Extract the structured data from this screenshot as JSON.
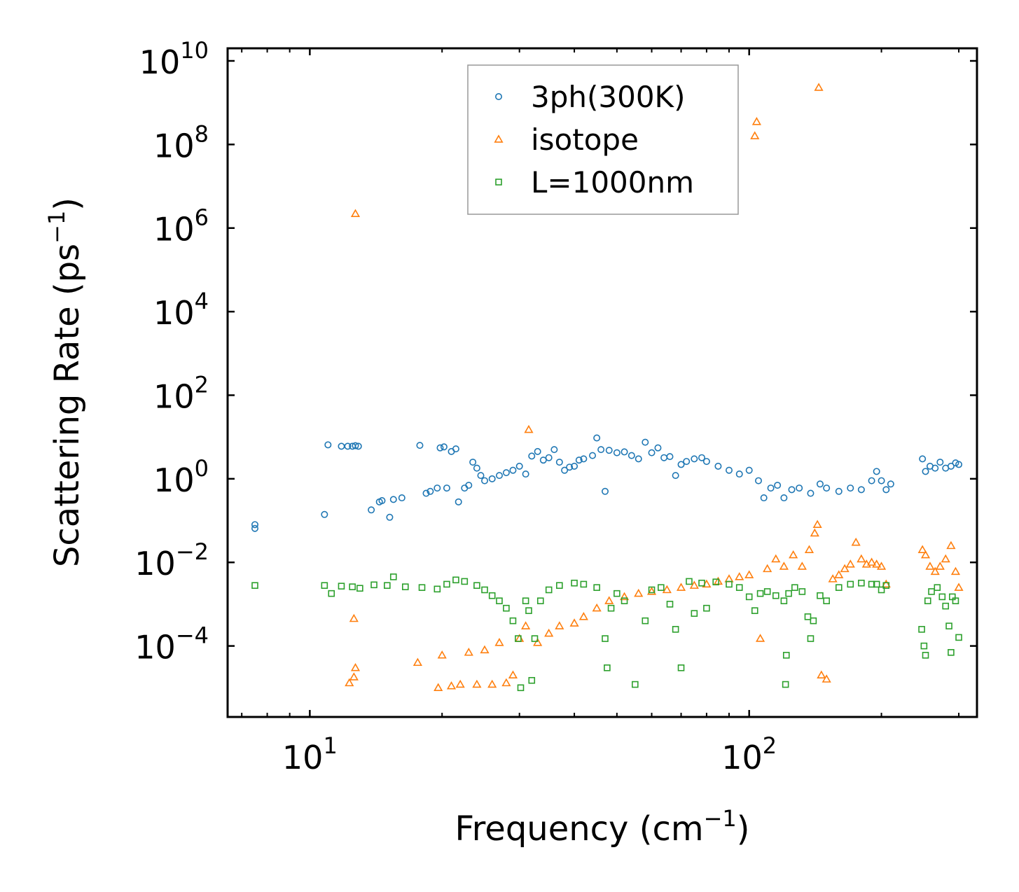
{
  "chart_data": {
    "type": "scatter",
    "title": "",
    "xlabel": "Frequency (cm⁻¹)",
    "xlabel_base": "Frequency (cm",
    "xlabel_sup": "−1",
    "xlabel_close": ")",
    "ylabel": "Scattering Rate (ps⁻¹)",
    "ylabel_base": "Scattering Rate (ps",
    "ylabel_sup": "−1",
    "ylabel_close": ")",
    "xscale": "log",
    "yscale": "log",
    "xlim": [
      6.5,
      330
    ],
    "ylim": [
      2e-06,
      20000000000.0
    ],
    "grid": false,
    "legend_position": "top-center",
    "x_ticks": [
      {
        "base": "10",
        "exp": "1",
        "value": 10
      },
      {
        "base": "10",
        "exp": "2",
        "value": 100
      }
    ],
    "y_ticks": [
      {
        "base": "10",
        "exp": "10",
        "value": 10000000000.0
      },
      {
        "base": "10",
        "exp": "8",
        "value": 100000000.0
      },
      {
        "base": "10",
        "exp": "6",
        "value": 1000000.0
      },
      {
        "base": "10",
        "exp": "4",
        "value": 10000.0
      },
      {
        "base": "10",
        "exp": "2",
        "value": 100
      },
      {
        "base": "10",
        "exp": "0",
        "value": 1
      },
      {
        "base": "10",
        "exp": "−2",
        "value": 0.01
      },
      {
        "base": "10",
        "exp": "−4",
        "value": 0.0001
      }
    ],
    "series": [
      {
        "name": "3ph(300K)",
        "marker": "circle",
        "color": "#1f77b4",
        "points": [
          [
            7.5,
            0.08
          ],
          [
            7.5,
            0.065
          ],
          [
            10.8,
            0.14
          ],
          [
            11.0,
            6.5
          ],
          [
            11.8,
            6.0
          ],
          [
            12.2,
            6.0
          ],
          [
            12.5,
            6.0
          ],
          [
            12.7,
            6.2
          ],
          [
            12.9,
            6.0
          ],
          [
            13.8,
            0.18
          ],
          [
            14.4,
            0.28
          ],
          [
            14.6,
            0.3
          ],
          [
            15.2,
            0.12
          ],
          [
            15.5,
            0.32
          ],
          [
            16.2,
            0.35
          ],
          [
            17.8,
            6.3
          ],
          [
            18.4,
            0.45
          ],
          [
            18.8,
            0.5
          ],
          [
            19.5,
            0.6
          ],
          [
            19.8,
            5.5
          ],
          [
            20.2,
            5.8
          ],
          [
            20.5,
            0.6
          ],
          [
            21.0,
            4.5
          ],
          [
            21.5,
            5.2
          ],
          [
            21.8,
            0.28
          ],
          [
            22.5,
            0.6
          ],
          [
            23.0,
            0.7
          ],
          [
            23.5,
            2.5
          ],
          [
            24.0,
            1.8
          ],
          [
            24.5,
            1.2
          ],
          [
            25.0,
            0.9
          ],
          [
            26.0,
            1.0
          ],
          [
            27.0,
            1.2
          ],
          [
            28.0,
            1.4
          ],
          [
            29.0,
            1.6
          ],
          [
            30.0,
            2.0
          ],
          [
            31.0,
            1.3
          ],
          [
            32.0,
            3.5
          ],
          [
            33.0,
            4.5
          ],
          [
            34.0,
            2.8
          ],
          [
            35.0,
            3.2
          ],
          [
            36.0,
            5.0
          ],
          [
            37.0,
            2.5
          ],
          [
            38.0,
            1.6
          ],
          [
            39.0,
            1.9
          ],
          [
            40.0,
            2.0
          ],
          [
            41.0,
            2.8
          ],
          [
            42.0,
            3.0
          ],
          [
            44.0,
            3.6
          ],
          [
            45.0,
            9.5
          ],
          [
            46.0,
            5.0
          ],
          [
            47.0,
            0.5
          ],
          [
            48.0,
            4.8
          ],
          [
            50.0,
            4.2
          ],
          [
            52.0,
            4.4
          ],
          [
            54.0,
            3.6
          ],
          [
            56.0,
            3.0
          ],
          [
            58.0,
            7.5
          ],
          [
            60.0,
            4.2
          ],
          [
            62.0,
            5.5
          ],
          [
            64.0,
            3.2
          ],
          [
            66.0,
            3.4
          ],
          [
            68.0,
            1.2
          ],
          [
            70.0,
            2.2
          ],
          [
            72.0,
            2.6
          ],
          [
            75.0,
            3.0
          ],
          [
            78.0,
            3.2
          ],
          [
            80.0,
            2.6
          ],
          [
            85.0,
            2.0
          ],
          [
            90.0,
            1.6
          ],
          [
            95.0,
            1.3
          ],
          [
            100.0,
            1.6
          ],
          [
            105.0,
            0.9
          ],
          [
            108.0,
            0.35
          ],
          [
            112.0,
            0.6
          ],
          [
            116.0,
            0.7
          ],
          [
            120.0,
            0.35
          ],
          [
            125.0,
            0.55
          ],
          [
            130.0,
            0.6
          ],
          [
            138.0,
            0.45
          ],
          [
            145.0,
            0.75
          ],
          [
            150.0,
            0.6
          ],
          [
            160.0,
            0.5
          ],
          [
            170.0,
            0.6
          ],
          [
            180.0,
            0.55
          ],
          [
            190.0,
            0.9
          ],
          [
            195.0,
            1.5
          ],
          [
            200.0,
            0.9
          ],
          [
            205.0,
            0.55
          ],
          [
            210.0,
            0.75
          ],
          [
            248.0,
            3.0
          ],
          [
            252.0,
            1.5
          ],
          [
            258.0,
            2.0
          ],
          [
            265.0,
            1.8
          ],
          [
            272.0,
            2.5
          ],
          [
            280.0,
            1.8
          ],
          [
            288.0,
            2.0
          ],
          [
            295.0,
            2.4
          ],
          [
            300.0,
            2.2
          ]
        ]
      },
      {
        "name": "isotope",
        "marker": "triangle",
        "color": "#ff7f0e",
        "points": [
          [
            12.7,
            2200000.0
          ],
          [
            12.6,
            0.00045
          ],
          [
            12.7,
            3e-05
          ],
          [
            12.3,
            1.3e-05
          ],
          [
            12.6,
            1.8e-05
          ],
          [
            17.6,
            4e-05
          ],
          [
            19.6,
            1e-05
          ],
          [
            20.0,
            6e-05
          ],
          [
            21.0,
            1.1e-05
          ],
          [
            22.0,
            1.2e-05
          ],
          [
            23.0,
            7e-05
          ],
          [
            24.0,
            1.2e-05
          ],
          [
            25.0,
            8e-05
          ],
          [
            26.0,
            1.2e-05
          ],
          [
            27.0,
            0.00012
          ],
          [
            28.0,
            1.3e-05
          ],
          [
            29.0,
            2e-05
          ],
          [
            30.0,
            0.00015
          ],
          [
            31.0,
            0.0003
          ],
          [
            31.5,
            15
          ],
          [
            33.0,
            0.00012
          ],
          [
            35.0,
            0.0002
          ],
          [
            37.0,
            0.0003
          ],
          [
            40.0,
            0.00035
          ],
          [
            42.0,
            0.0005
          ],
          [
            45.0,
            0.0008
          ],
          [
            48.0,
            0.0012
          ],
          [
            52.0,
            0.0015
          ],
          [
            56.0,
            0.0018
          ],
          [
            60.0,
            0.002
          ],
          [
            65.0,
            0.0022
          ],
          [
            70.0,
            0.0025
          ],
          [
            75.0,
            0.0028
          ],
          [
            80.0,
            0.003
          ],
          [
            85.0,
            0.0035
          ],
          [
            90.0,
            0.004
          ],
          [
            95.0,
            0.0045
          ],
          [
            100.0,
            0.005
          ],
          [
            104.0,
            350000000.0
          ],
          [
            103.0,
            160000000.0
          ],
          [
            106.0,
            0.00015
          ],
          [
            110.0,
            0.007
          ],
          [
            115.0,
            0.012
          ],
          [
            120.0,
            0.008
          ],
          [
            126.0,
            0.015
          ],
          [
            132.0,
            0.008
          ],
          [
            137.0,
            0.02
          ],
          [
            141.0,
            0.05
          ],
          [
            143.0,
            0.08
          ],
          [
            144.0,
            2300000000.0
          ],
          [
            146.0,
            2e-05
          ],
          [
            150.0,
            1.6e-05
          ],
          [
            155.0,
            0.004
          ],
          [
            160.0,
            0.005
          ],
          [
            165.0,
            0.007
          ],
          [
            170.0,
            0.009
          ],
          [
            175.0,
            0.03
          ],
          [
            180.0,
            0.012
          ],
          [
            185.0,
            0.009
          ],
          [
            190.0,
            0.01
          ],
          [
            195.0,
            0.009
          ],
          [
            200.0,
            0.008
          ],
          [
            205.0,
            0.003
          ],
          [
            248.0,
            0.02
          ],
          [
            252.0,
            0.015
          ],
          [
            258.0,
            0.008
          ],
          [
            265.0,
            0.006
          ],
          [
            272.0,
            0.008
          ],
          [
            280.0,
            0.012
          ],
          [
            288.0,
            0.025
          ],
          [
            295.0,
            0.006
          ],
          [
            300.0,
            0.0025
          ]
        ]
      },
      {
        "name": "L=1000nm",
        "marker": "square",
        "color": "#2ca02c",
        "points": [
          [
            7.5,
            0.0028
          ],
          [
            10.8,
            0.0028
          ],
          [
            11.2,
            0.0018
          ],
          [
            11.8,
            0.0027
          ],
          [
            12.5,
            0.0026
          ],
          [
            13.0,
            0.0024
          ],
          [
            14.0,
            0.0029
          ],
          [
            15.0,
            0.0028
          ],
          [
            15.5,
            0.0045
          ],
          [
            16.5,
            0.0026
          ],
          [
            18.0,
            0.0025
          ],
          [
            19.5,
            0.0023
          ],
          [
            20.5,
            0.003
          ],
          [
            21.5,
            0.0038
          ],
          [
            22.5,
            0.0035
          ],
          [
            24.0,
            0.0028
          ],
          [
            25.0,
            0.0022
          ],
          [
            26.0,
            0.0016
          ],
          [
            27.0,
            0.0012
          ],
          [
            28.0,
            0.0008
          ],
          [
            29.0,
            0.0004
          ],
          [
            29.8,
            0.00015
          ],
          [
            30.2,
            1e-05
          ],
          [
            31.0,
            0.0012
          ],
          [
            31.5,
            0.0007
          ],
          [
            32.0,
            1.5e-05
          ],
          [
            32.5,
            0.00015
          ],
          [
            33.5,
            0.0012
          ],
          [
            35.0,
            0.0022
          ],
          [
            37.0,
            0.0028
          ],
          [
            40.0,
            0.0032
          ],
          [
            42.0,
            0.003
          ],
          [
            45.0,
            0.0025
          ],
          [
            47.0,
            0.00015
          ],
          [
            47.5,
            3e-05
          ],
          [
            48.5,
            0.0008
          ],
          [
            50.0,
            0.0018
          ],
          [
            52.0,
            0.0012
          ],
          [
            55.0,
            1.2e-05
          ],
          [
            58.0,
            0.0004
          ],
          [
            60.0,
            0.0022
          ],
          [
            63.0,
            0.0025
          ],
          [
            66.0,
            0.001
          ],
          [
            68.0,
            0.00025
          ],
          [
            70.0,
            3e-05
          ],
          [
            73.0,
            0.0035
          ],
          [
            75.0,
            0.0006
          ],
          [
            78.0,
            0.0032
          ],
          [
            80.0,
            0.0008
          ],
          [
            84.0,
            0.0034
          ],
          [
            90.0,
            0.003
          ],
          [
            95.0,
            0.0025
          ],
          [
            100.0,
            0.0015
          ],
          [
            103.0,
            0.0007
          ],
          [
            106.0,
            0.0018
          ],
          [
            110.0,
            0.002
          ],
          [
            115.0,
            0.0016
          ],
          [
            120.0,
            0.0012
          ],
          [
            121.0,
            1.2e-05
          ],
          [
            121.5,
            6e-05
          ],
          [
            123.0,
            0.0018
          ],
          [
            127.0,
            0.0025
          ],
          [
            132.0,
            0.002
          ],
          [
            136.0,
            0.0005
          ],
          [
            138.0,
            0.00015
          ],
          [
            140.0,
            0.0004
          ],
          [
            145.0,
            0.0016
          ],
          [
            150.0,
            0.0012
          ],
          [
            160.0,
            0.0025
          ],
          [
            170.0,
            0.003
          ],
          [
            180.0,
            0.0032
          ],
          [
            190.0,
            0.003
          ],
          [
            195.0,
            0.003
          ],
          [
            200.0,
            0.0022
          ],
          [
            205.0,
            0.0028
          ],
          [
            247.0,
            0.00025
          ],
          [
            250.0,
            0.0001
          ],
          [
            252.0,
            6e-05
          ],
          [
            255.0,
            0.0012
          ],
          [
            260.0,
            0.002
          ],
          [
            268.0,
            0.0025
          ],
          [
            275.0,
            0.0015
          ],
          [
            280.0,
            0.0009
          ],
          [
            285.0,
            0.0003
          ],
          [
            288.0,
            7e-05
          ],
          [
            290.0,
            0.0015
          ],
          [
            295.0,
            0.0012
          ],
          [
            300.0,
            0.00016
          ]
        ]
      }
    ]
  }
}
